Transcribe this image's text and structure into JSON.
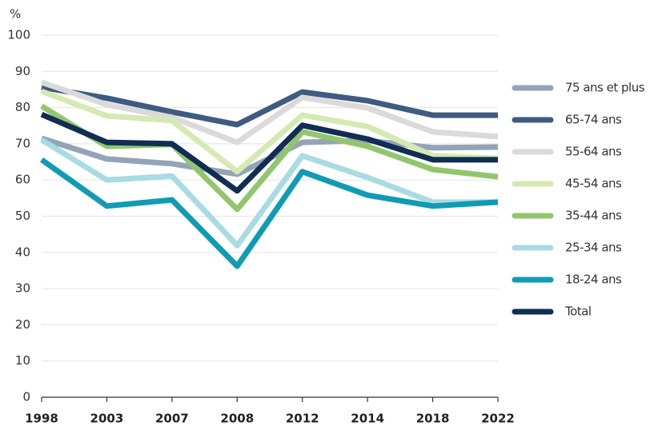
{
  "chart_data": {
    "type": "line",
    "y_label": "%",
    "categories": [
      "1998",
      "2003",
      "2007",
      "2008",
      "2012",
      "2014",
      "2018",
      "2022"
    ],
    "ylim": [
      0,
      100
    ],
    "yticks": [
      0,
      10,
      20,
      30,
      40,
      50,
      60,
      70,
      80,
      90,
      100
    ],
    "grid": true,
    "series": [
      {
        "name": "75 ans et plus",
        "color": "#93a3b8",
        "values": [
          71.5,
          65.8,
          64.5,
          61.6,
          70.4,
          70.9,
          68.9,
          69.1
        ]
      },
      {
        "name": "65-74 ans",
        "color": "#3f5b80",
        "values": [
          85.6,
          82.6,
          78.8,
          75.3,
          84.3,
          81.9,
          77.9,
          77.9
        ]
      },
      {
        "name": "55-64 ans",
        "color": "#dadada",
        "values": [
          87,
          80.8,
          77.3,
          70.4,
          82.8,
          79.9,
          73.3,
          72
        ]
      },
      {
        "name": "45-54 ans",
        "color": "#d5e9b3",
        "values": [
          84.5,
          77.7,
          76.4,
          62.3,
          77.9,
          74.8,
          66.7,
          66
        ]
      },
      {
        "name": "35-44 ans",
        "color": "#92c66d",
        "values": [
          80.4,
          69.3,
          69.8,
          51.9,
          73.3,
          69.3,
          62.9,
          60.9
        ]
      },
      {
        "name": "25-34 ans",
        "color": "#a8dce2",
        "values": [
          71.1,
          60,
          61.1,
          41.9,
          66.7,
          60.7,
          53.9,
          53.9
        ]
      },
      {
        "name": "18-24 ans",
        "color": "#109bb5",
        "values": [
          65.6,
          52.8,
          54.5,
          36.2,
          62.3,
          55.8,
          52.8,
          53.9
        ]
      },
      {
        "name": "Total",
        "color": "#102e53",
        "values": [
          78.1,
          70.4,
          70,
          57,
          75.1,
          71.3,
          65.6,
          65.6
        ]
      }
    ]
  }
}
